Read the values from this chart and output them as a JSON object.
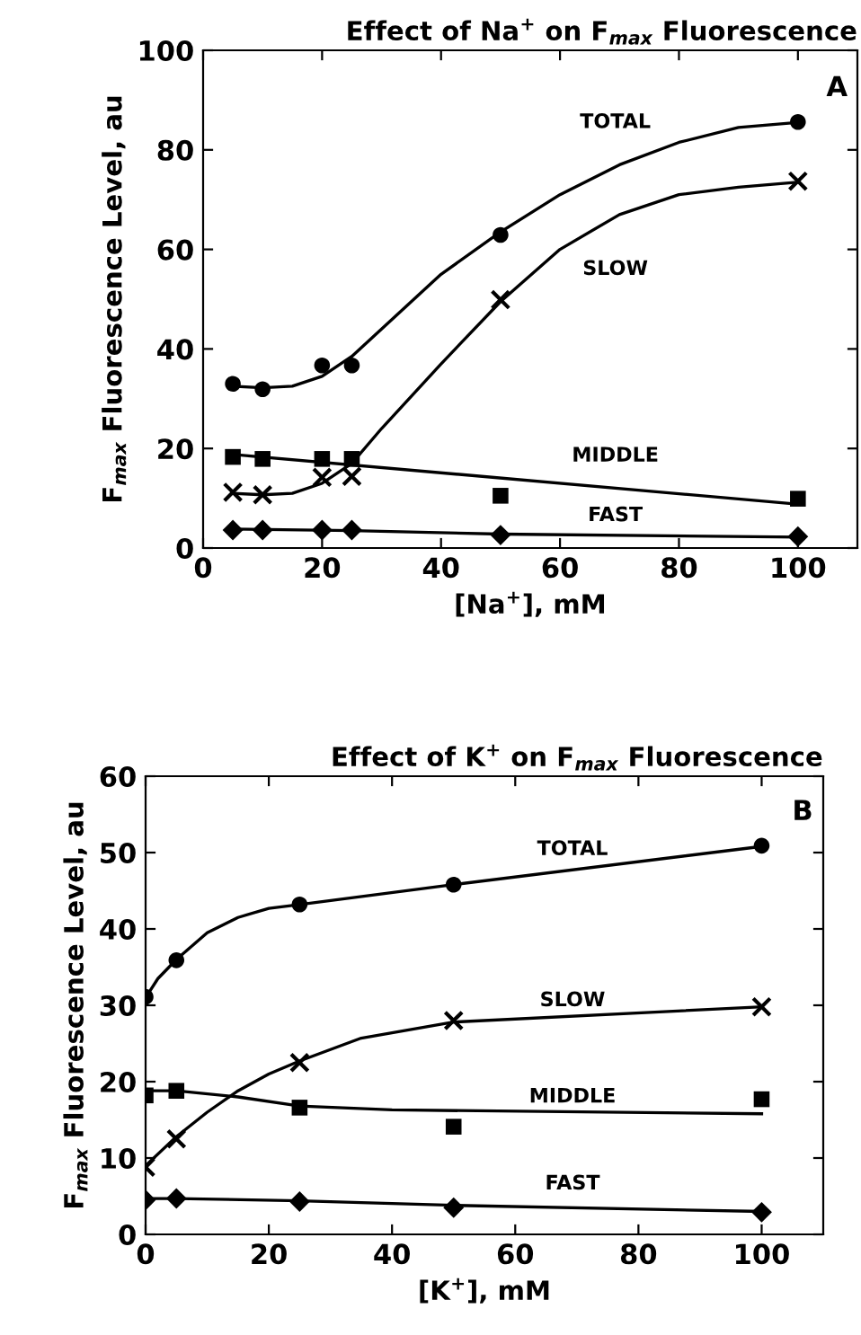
{
  "chart_data": [
    {
      "type": "scatter",
      "title": "Effect of Na$^{+}$ on F$_{max}$ Fluorescence",
      "xlabel": "[Na$^{+}$], mM",
      "ylabel": "F$_{max}$ Fluorescence Level, au",
      "xlim": [
        0,
        110
      ],
      "ylim": [
        0,
        100
      ],
      "xticks": [
        0,
        20,
        40,
        60,
        80,
        100
      ],
      "yticks": [
        0,
        20,
        40,
        60,
        80,
        100
      ],
      "grid": false,
      "legend": false,
      "series": [
        {
          "color": "#000000",
          "marker": "circle",
          "x": [
            5,
            10,
            20,
            25,
            50,
            100
          ],
          "values": [
            33.0,
            31.9,
            36.7,
            36.7,
            62.9,
            85.6
          ]
        },
        {
          "color": "#000000",
          "marker": "cross",
          "x": [
            5,
            10,
            20,
            25,
            50,
            100
          ],
          "values": [
            11.2,
            10.7,
            14.2,
            14.4,
            49.9,
            73.7
          ]
        },
        {
          "color": "#000000",
          "marker": "square",
          "x": [
            5,
            10,
            20,
            25,
            50,
            100
          ],
          "values": [
            18.3,
            17.9,
            17.9,
            17.9,
            10.5,
            9.9
          ]
        },
        {
          "color": "#000000",
          "marker": "diamond",
          "x": [
            5,
            10,
            20,
            25,
            50,
            100
          ],
          "values": [
            3.6,
            3.6,
            3.6,
            3.6,
            2.6,
            2.3
          ]
        },
        {
          "type": "line",
          "color": "#000000",
          "x": [
            5,
            10,
            15,
            20,
            25,
            30,
            40,
            50,
            60,
            70,
            80,
            90,
            100
          ],
          "values": [
            32.5,
            32.2,
            32.5,
            34.5,
            38.5,
            44,
            55,
            63.5,
            71,
            77,
            81.5,
            84.5,
            85.5
          ]
        },
        {
          "type": "line",
          "color": "#000000",
          "x": [
            5,
            10,
            15,
            20,
            25,
            30,
            40,
            50,
            60,
            70,
            80,
            90,
            100
          ],
          "values": [
            11,
            10.7,
            11,
            13,
            17,
            24,
            37,
            49.5,
            60,
            67,
            71,
            72.5,
            73.5
          ]
        },
        {
          "type": "line",
          "color": "#000000",
          "x": [
            5,
            100
          ],
          "values": [
            18.8,
            8.8
          ]
        },
        {
          "type": "line",
          "color": "#000000",
          "x": [
            5,
            25,
            50,
            100
          ],
          "values": [
            3.8,
            3.5,
            2.8,
            2.2
          ]
        }
      ],
      "annotations": [
        "A",
        "TOTAL",
        "SLOW",
        "MIDDLE",
        "FAST"
      ]
    },
    {
      "type": "scatter",
      "title": "Effect of K$^{+}$ on F$_{max}$ Fluorescence",
      "xlabel": "[K$^{+}$], mM",
      "ylabel": "F$_{max}$ Fluorescence Level, au",
      "xlim": [
        0,
        110
      ],
      "ylim": [
        0,
        60
      ],
      "xticks": [
        0,
        20,
        40,
        60,
        80,
        100
      ],
      "yticks": [
        0,
        10,
        20,
        30,
        40,
        50,
        60
      ],
      "grid": false,
      "legend": false,
      "series": [
        {
          "color": "#000000",
          "marker": "circle",
          "x": [
            0,
            5,
            25,
            50,
            100
          ],
          "values": [
            31.1,
            35.9,
            43.2,
            45.8,
            50.9
          ]
        },
        {
          "color": "#000000",
          "marker": "cross",
          "x": [
            0,
            5,
            25,
            50,
            100
          ],
          "values": [
            8.8,
            12.5,
            22.5,
            28.0,
            29.8
          ]
        },
        {
          "color": "#000000",
          "marker": "square",
          "x": [
            0,
            5,
            25,
            50,
            100
          ],
          "values": [
            18.2,
            18.8,
            16.6,
            14.1,
            17.7
          ]
        },
        {
          "color": "#000000",
          "marker": "diamond",
          "x": [
            0,
            5,
            25,
            50,
            100
          ],
          "values": [
            4.5,
            4.7,
            4.3,
            3.5,
            2.9
          ]
        },
        {
          "type": "line",
          "color": "#000000",
          "x": [
            0,
            2,
            5,
            10,
            15,
            20,
            25,
            50,
            100
          ],
          "values": [
            31,
            33.5,
            36,
            39.5,
            41.5,
            42.7,
            43.2,
            45.8,
            50.8
          ]
        },
        {
          "type": "line",
          "color": "#000000",
          "x": [
            0,
            5,
            10,
            15,
            20,
            25,
            35,
            50,
            100
          ],
          "values": [
            9,
            12.8,
            16,
            18.8,
            21,
            22.7,
            25.7,
            27.8,
            29.8
          ]
        },
        {
          "type": "line",
          "color": "#000000",
          "x": [
            0,
            5,
            15,
            25,
            40,
            100
          ],
          "values": [
            18.8,
            18.8,
            18,
            16.8,
            16.3,
            15.8
          ]
        },
        {
          "type": "line",
          "color": "#000000",
          "x": [
            0,
            5,
            25,
            50,
            100
          ],
          "values": [
            4.7,
            4.7,
            4.4,
            3.8,
            3.0
          ]
        }
      ],
      "annotations": [
        "B",
        "TOTAL",
        "SLOW",
        "MIDDLE",
        "FAST"
      ]
    }
  ]
}
